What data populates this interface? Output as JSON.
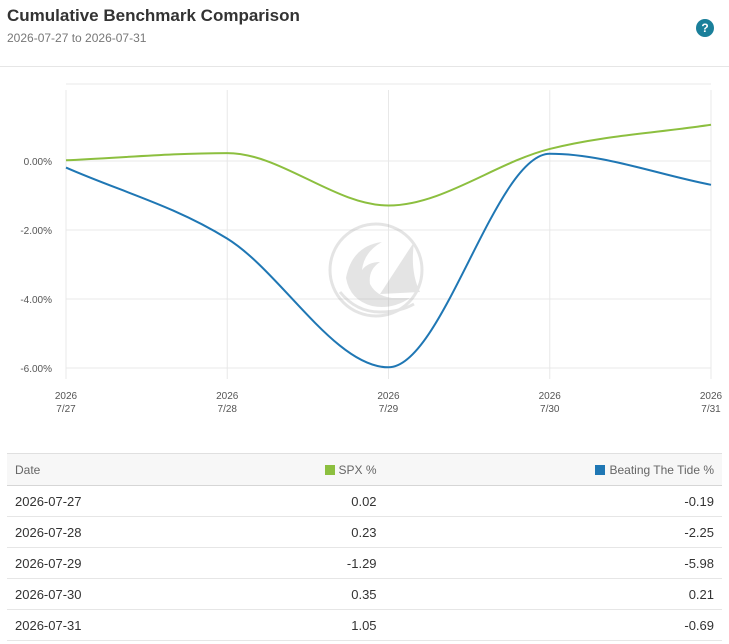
{
  "header": {
    "title": "Cumulative Benchmark Comparison",
    "subtitle": "2026-07-27 to 2026-07-31",
    "help_label": "?"
  },
  "colors": {
    "spx": "#8cbf3f",
    "btt": "#1f77b4",
    "grid": "#e8e8e8",
    "accent": "#1a7f9a"
  },
  "chart_data": {
    "type": "line",
    "x": [
      "2026-07-27",
      "2026-07-28",
      "2026-07-29",
      "2026-07-30",
      "2026-07-31"
    ],
    "x_tick_labels": [
      {
        "year": "2026",
        "md": "7/27"
      },
      {
        "year": "2026",
        "md": "7/28"
      },
      {
        "year": "2026",
        "md": "7/29"
      },
      {
        "year": "2026",
        "md": "7/30"
      },
      {
        "year": "2026",
        "md": "7/31"
      }
    ],
    "series": [
      {
        "name": "SPX %",
        "color": "#8cbf3f",
        "values": [
          0.02,
          0.23,
          -1.29,
          0.35,
          1.05
        ]
      },
      {
        "name": "Beating The Tide %",
        "color": "#1f77b4",
        "values": [
          -0.19,
          -2.25,
          -5.98,
          0.21,
          -0.69
        ]
      }
    ],
    "y_ticks": [
      0,
      -2,
      -4,
      -6
    ],
    "y_tick_labels": [
      "0.00%",
      "-2.00%",
      "-4.00%",
      "-6.00%"
    ],
    "ylim": [
      -6.2,
      2.0
    ],
    "grid": true,
    "watermark": "wave-shark-logo-icon"
  },
  "table": {
    "headers": {
      "date": "Date",
      "spx": "SPX %",
      "btt": "Beating The Tide %"
    },
    "rows": [
      {
        "date": "2026-07-27",
        "spx": "0.02",
        "btt": "-0.19"
      },
      {
        "date": "2026-07-28",
        "spx": "0.23",
        "btt": "-2.25"
      },
      {
        "date": "2026-07-29",
        "spx": "-1.29",
        "btt": "-5.98"
      },
      {
        "date": "2026-07-30",
        "spx": "0.35",
        "btt": "0.21"
      },
      {
        "date": "2026-07-31",
        "spx": "1.05",
        "btt": "-0.69"
      }
    ]
  }
}
